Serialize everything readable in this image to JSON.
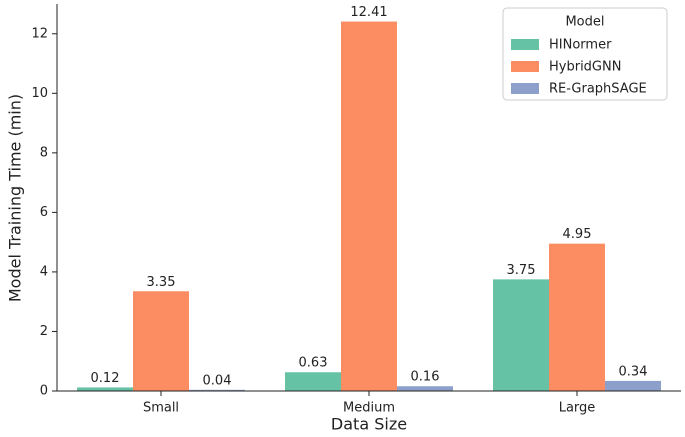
{
  "chart_data": {
    "type": "bar",
    "xlabel": "Data Size",
    "ylabel": "Model Training Time (min)",
    "categories": [
      "Small",
      "Medium",
      "Large"
    ],
    "series": [
      {
        "name": "HINormer",
        "color": "#66c2a5",
        "values": [
          0.12,
          0.63,
          3.75
        ]
      },
      {
        "name": "HybridGNN",
        "color": "#fc8d62",
        "values": [
          3.35,
          12.41,
          4.95
        ]
      },
      {
        "name": "RE-GraphSAGE",
        "color": "#8da0cb",
        "values": [
          0.04,
          0.16,
          0.34
        ]
      }
    ],
    "legend_title": "Model",
    "legend_position": "upper right",
    "ylim": [
      0,
      13
    ],
    "yticks": [
      0,
      2,
      4,
      6,
      8,
      10,
      12
    ]
  }
}
